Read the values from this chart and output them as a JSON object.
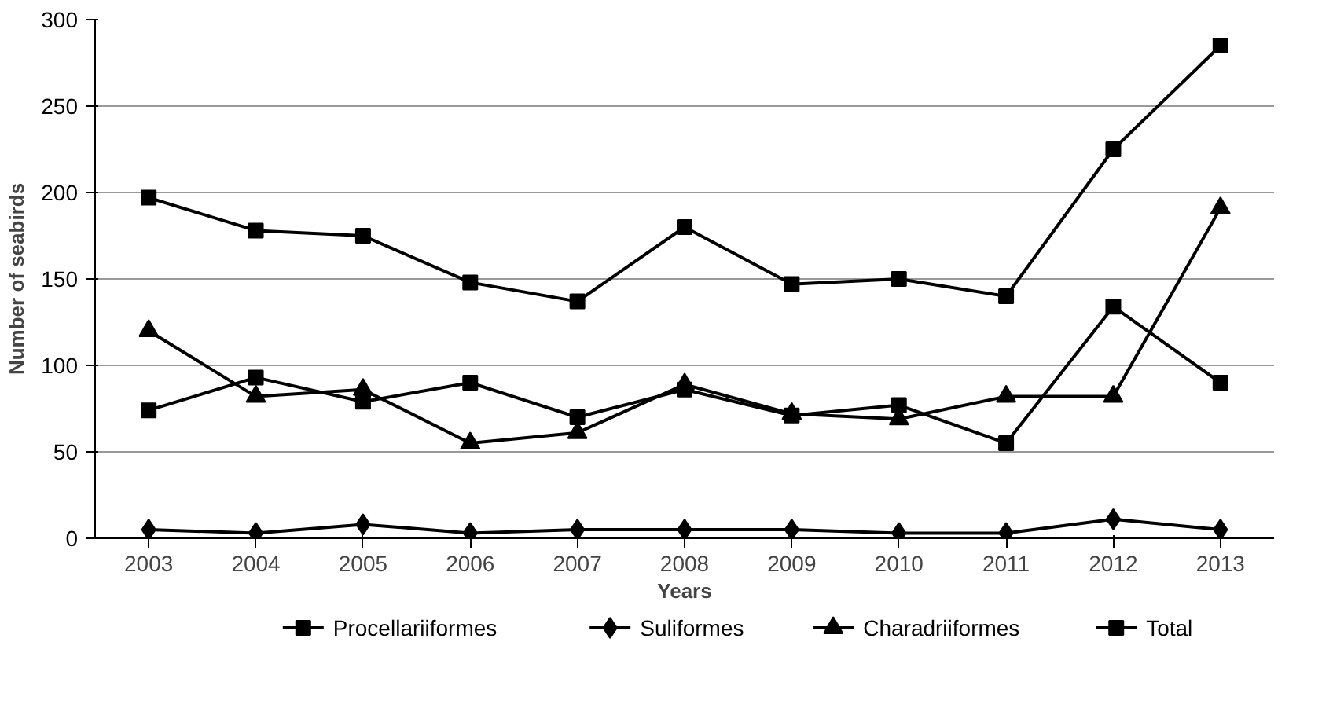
{
  "chart_data": {
    "type": "line",
    "xlabel": "Years",
    "ylabel": "Number of seabirds",
    "categories": [
      "2003",
      "2004",
      "2005",
      "2006",
      "2007",
      "2008",
      "2009",
      "2010",
      "2011",
      "2012",
      "2013"
    ],
    "ylim": [
      0,
      300
    ],
    "yticks": [
      0,
      50,
      100,
      150,
      200,
      250,
      300
    ],
    "grid": "y",
    "legend": "bottom",
    "series": [
      {
        "name": "Procellariiformes",
        "color": "#000000",
        "marker": "square",
        "values": [
          74,
          93,
          79,
          90,
          70,
          86,
          71,
          77,
          55,
          134,
          90
        ]
      },
      {
        "name": "Suliformes",
        "color": "#000000",
        "marker": "diamond",
        "values": [
          5,
          3,
          8,
          3,
          5,
          5,
          5,
          3,
          3,
          11,
          5
        ]
      },
      {
        "name": "Charadriiformes",
        "color": "#000000",
        "marker": "triangle",
        "values": [
          120,
          82,
          86,
          55,
          61,
          89,
          72,
          69,
          82,
          82,
          191
        ]
      },
      {
        "name": "Total",
        "color": "#000000",
        "marker": "square",
        "values": [
          197,
          178,
          175,
          148,
          137,
          180,
          147,
          150,
          140,
          225,
          285
        ]
      }
    ]
  }
}
